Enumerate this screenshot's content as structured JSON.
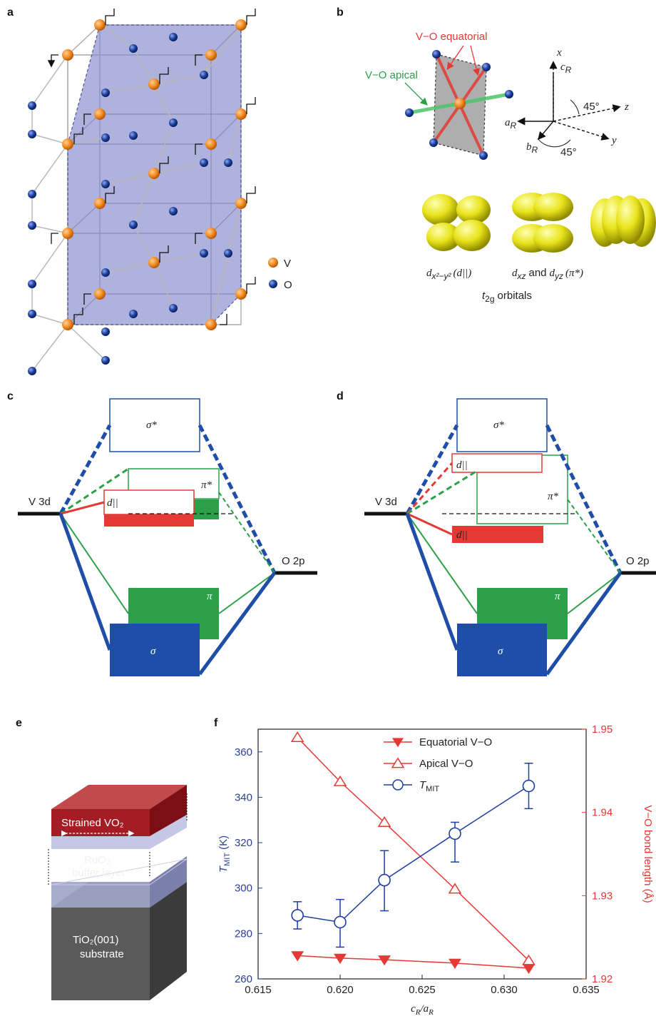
{
  "panels": {
    "a": "a",
    "b": "b",
    "c": "c",
    "d": "d",
    "e": "e",
    "f": "f"
  },
  "panel_a": {
    "legend": [
      {
        "label": "V",
        "color": "#f28a1e"
      },
      {
        "label": "O",
        "color": "#1a3fa0"
      }
    ]
  },
  "panel_b": {
    "bond_equatorial": "V−O equatorial",
    "bond_apical": "V−O apical",
    "axes": {
      "x": "x",
      "z": "z",
      "y": "y",
      "cR": "c",
      "aR": "a",
      "bR": "b",
      "sub": "R",
      "angle1": "45°",
      "angle2": "45°"
    },
    "orbital_1": "d",
    "orbital_1_sub": "x²−y²",
    "orbital_1_par": "(d||)",
    "orbital_2": "d",
    "orbital_2_sub": "xz",
    "orbital_2_and": "and",
    "orbital_3": "d",
    "orbital_3_sub": "yz",
    "orbital_2_par": "(π*)",
    "group_label": "t",
    "group_sub": "2g",
    "group_rest": "orbitals"
  },
  "panel_c": {
    "left_level": "V 3d",
    "right_level": "O 2p",
    "sigma_star": "σ*",
    "pi_star": "π*",
    "d_par": "d||",
    "pi": "π",
    "sigma": "σ"
  },
  "panel_d": {
    "left_level": "V 3d",
    "right_level": "O 2p",
    "sigma_star": "σ*",
    "pi_star": "π*",
    "d_par_top": "d||",
    "d_par_bottom": "d||",
    "pi": "π",
    "sigma": "σ"
  },
  "panel_e": {
    "layer_top": "Strained VO₂",
    "layer_mid_1": "RuO₂",
    "layer_mid_2": "buffer layer",
    "layer_bottom_1": "TiO₂(001)",
    "layer_bottom_2": "substrate"
  },
  "chart_data": {
    "type": "line",
    "xlabel": "cR/aR",
    "ylabel_left": "TMIT (K)",
    "ylabel_right": "V−O bond length (Å)",
    "xlim": [
      0.615,
      0.635
    ],
    "ylim_left": [
      260,
      370
    ],
    "ylim_right": [
      1.92,
      1.95
    ],
    "xticks": [
      "0.615",
      "0.620",
      "0.625",
      "0.630",
      "0.635"
    ],
    "yticks_left": [
      "260",
      "280",
      "300",
      "320",
      "340",
      "360"
    ],
    "yticks_right": [
      "1.92",
      "1.93",
      "1.94",
      "1.95"
    ],
    "colors": {
      "left_axis": "#2b3f9a",
      "right_axis": "#e53935",
      "tmit": "#1f3fa0",
      "bond": "#e53935"
    },
    "series": [
      {
        "name": "Equatorial V−O",
        "axis": "right",
        "marker": "triangle-down-filled",
        "x": [
          0.6174,
          0.62,
          0.6227,
          0.627,
          0.6315
        ],
        "y": [
          1.9228,
          1.9225,
          1.9223,
          1.9219,
          1.9213
        ]
      },
      {
        "name": "Apical V−O",
        "axis": "right",
        "marker": "triangle-up-open",
        "x": [
          0.6174,
          0.62,
          0.6227,
          0.627,
          0.6315
        ],
        "y": [
          1.949,
          1.9437,
          1.9388,
          1.9308,
          1.9222
        ]
      },
      {
        "name": "TMIT",
        "axis": "left",
        "marker": "circle-open",
        "x": [
          0.6174,
          0.62,
          0.6227,
          0.627,
          0.6315
        ],
        "y": [
          288,
          285,
          303.5,
          324,
          345
        ],
        "err_low": [
          6,
          11,
          13.5,
          12.5,
          10
        ],
        "err_high": [
          6,
          10,
          13,
          5,
          10
        ]
      }
    ],
    "legend_labels": [
      "Equatorial V−O",
      "Apical V−O",
      "T",
      "MIT"
    ]
  }
}
